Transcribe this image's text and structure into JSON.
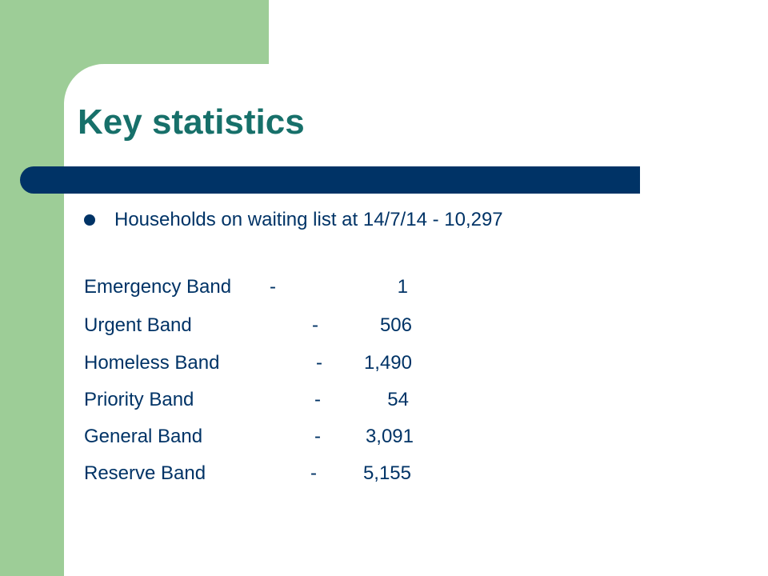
{
  "slide": {
    "title": "Key statistics",
    "bullet": "Households on waiting list at 14/7/14 - 10,297",
    "bands": [
      {
        "label": "Emergency Band",
        "dash": "-",
        "value": "1"
      },
      {
        "label": "Urgent Band",
        "dash": "-",
        "value": "506"
      },
      {
        "label": "Homeless Band",
        "dash": "-",
        "value": "1,490"
      },
      {
        "label": "Priority Band",
        "dash": "-",
        "value": "54"
      },
      {
        "label": "General Band",
        "dash": "-",
        "value": "3,091"
      },
      {
        "label": "Reserve Band",
        "dash": "-",
        "value": "5,155"
      }
    ]
  },
  "colors": {
    "accent_green": "#9dcd97",
    "title_teal": "#17706a",
    "navy": "#003366"
  }
}
